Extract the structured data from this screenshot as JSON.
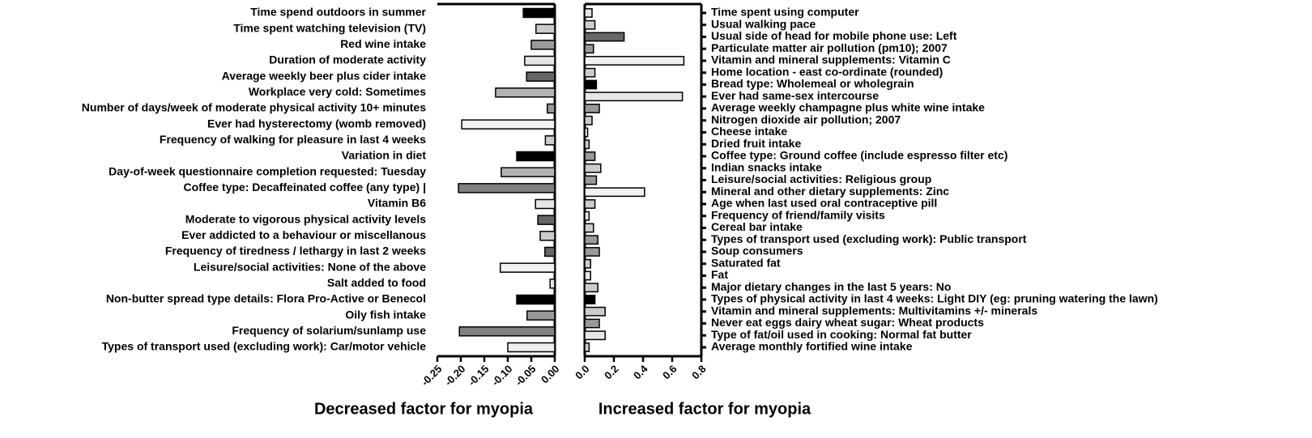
{
  "chart_data": [
    {
      "type": "bar",
      "orientation": "horizontal",
      "xlabel": "Decreased factor for myopia",
      "categories": [
        "Time spend outdoors in summer",
        "Time spent watching television (TV)",
        "Red wine intake",
        "Duration of moderate activity",
        "Average weekly beer plus cider intake",
        "Workplace very cold: Sometimes",
        "Number of days/week of moderate physical activity 10+ minutes",
        "Ever had hysterectomy (womb removed)",
        "Frequency of walking for pleasure in last 4 weeks",
        "Variation in diet",
        "Day-of-week questionnaire completion requested: Tuesday",
        "Coffee type: Decaffeinated coffee (any type) |",
        "Vitamin B6",
        "Moderate to vigorous physical activity levels",
        "Ever addicted to a behaviour or miscellanous",
        "Frequency of tiredness / lethargy in last 2 weeks",
        "Leisure/social activities: None of the above",
        "Salt added to food",
        "Non-butter spread type details: Flora Pro-Active or Benecol",
        "Oily fish intake",
        "Frequency of solarium/sunlamp use",
        "Types of transport used (excluding work): Car/motor vehicle"
      ],
      "values": [
        -0.067,
        -0.04,
        -0.05,
        -0.064,
        -0.06,
        -0.126,
        -0.016,
        -0.198,
        -0.02,
        -0.081,
        -0.114,
        -0.205,
        -0.041,
        -0.036,
        -0.031,
        -0.021,
        -0.116,
        -0.01,
        -0.081,
        -0.059,
        -0.203,
        -0.1
      ],
      "colors": [
        "#000000",
        "#cccccc",
        "#999999",
        "#e6e6e6",
        "#666666",
        "#b3b3b3",
        "#999999",
        "#f2f2f2",
        "#cccccc",
        "#000000",
        "#b3b3b3",
        "#808080",
        "#e6e6e6",
        "#666666",
        "#cccccc",
        "#666666",
        "#f2f2f2",
        "#e6e6e6",
        "#000000",
        "#999999",
        "#808080",
        "#eeeeee"
      ],
      "xlim": [
        -0.25,
        0
      ],
      "xticks": [
        -0.25,
        {
          "value": -0.2,
          "label": "-0.20"
        },
        -0.15,
        {
          "value": -0.1,
          "label": "-0.10"
        },
        -0.05,
        {
          "value": 0,
          "label": "0.00"
        }
      ]
    },
    {
      "type": "bar",
      "orientation": "horizontal",
      "xlabel": "Increased factor for myopia",
      "categories": [
        "Time spent using computer",
        "Usual walking pace",
        "Usual side of head for mobile phone use: Left",
        "Particulate matter air pollution (pm10); 2007",
        "Vitamin and mineral supplements: Vitamin C",
        "Home location - east co-ordinate (rounded)",
        "Bread type: Wholemeal or wholegrain",
        "Ever had same-sex intercourse",
        "Average weekly champagne plus white wine intake",
        "Nitrogen dioxide air pollution; 2007",
        "Cheese intake",
        "Dried fruit intake",
        "Coffee type: Ground coffee (include espresso filter etc)",
        "Indian snacks intake",
        "Leisure/social activities: Religious group",
        "Mineral and other dietary supplements: Zinc",
        "Age when last used oral contraceptive pill",
        "Frequency of friend/family visits",
        "Cereal bar intake",
        "Types of transport used (excluding work): Public transport",
        "Soup consumers",
        "Saturated fat",
        "Fat",
        "Major dietary changes in the last 5 years: No",
        "Types of physical activity in last 4 weeks: Light DIY (eg: pruning watering the lawn)",
        "Vitamin and mineral supplements: Multivitamins +/- minerals",
        "Never eat eggs dairy wheat sugar: Wheat products",
        "Type of fat/oil used in cooking: Normal fat butter",
        "Average monthly fortified wine intake"
      ],
      "values": [
        0.05,
        0.07,
        0.27,
        0.06,
        0.68,
        0.07,
        0.08,
        0.67,
        0.1,
        0.05,
        0.02,
        0.03,
        0.07,
        0.11,
        0.08,
        0.41,
        0.07,
        0.03,
        0.06,
        0.09,
        0.1,
        0.04,
        0.04,
        0.09,
        0.07,
        0.14,
        0.1,
        0.14,
        0.03
      ],
      "colors": [
        "#e6e6e6",
        "#cccccc",
        "#666666",
        "#999999",
        "#f2f2f2",
        "#cccccc",
        "#000000",
        "#e6e6e6",
        "#999999",
        "#cccccc",
        "#e6e6e6",
        "#cccccc",
        "#999999",
        "#cccccc",
        "#999999",
        "#f2f2f2",
        "#cccccc",
        "#e6e6e6",
        "#cccccc",
        "#999999",
        "#999999",
        "#cccccc",
        "#e6e6e6",
        "#cccccc",
        "#000000",
        "#cccccc",
        "#999999",
        "#e6e6e6",
        "#cccccc"
      ],
      "xlim": [
        0,
        0.8
      ],
      "xticks": [
        {
          "value": 0,
          "label": "0.0"
        },
        0.2,
        0.4,
        0.6,
        0.8
      ]
    }
  ]
}
